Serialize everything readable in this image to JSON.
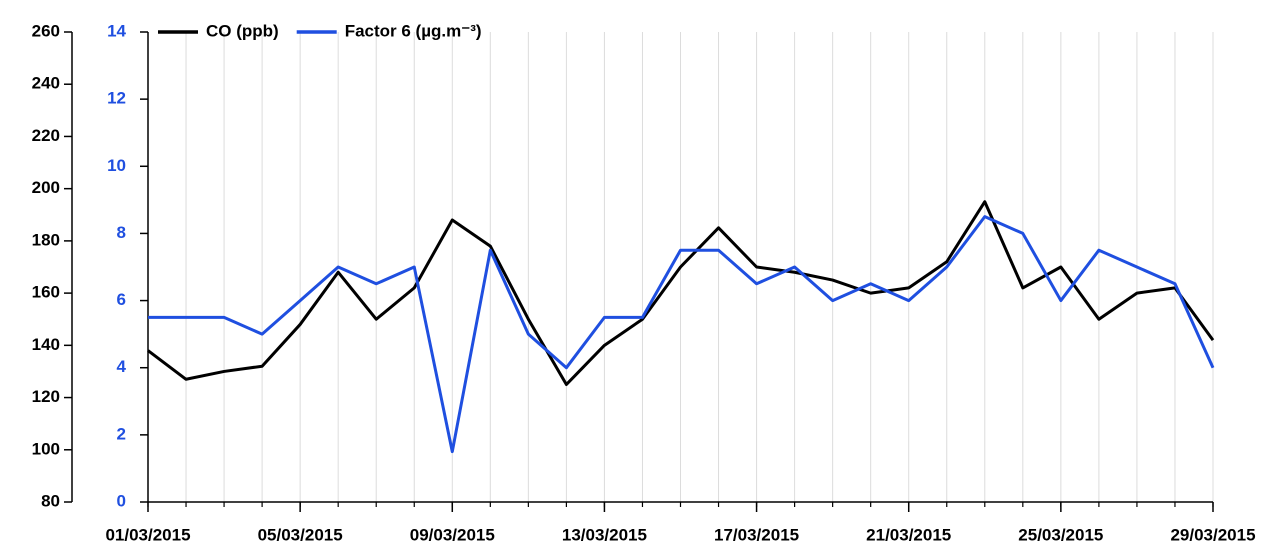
{
  "chart_data": {
    "type": "line",
    "x": [
      "01/03/2015",
      "02/03/2015",
      "03/03/2015",
      "04/03/2015",
      "05/03/2015",
      "06/03/2015",
      "07/03/2015",
      "08/03/2015",
      "09/03/2015",
      "10/03/2015",
      "11/03/2015",
      "12/03/2015",
      "13/03/2015",
      "14/03/2015",
      "15/03/2015",
      "16/03/2015",
      "17/03/2015",
      "18/03/2015",
      "19/03/2015",
      "20/03/2015",
      "21/03/2015",
      "22/03/2015",
      "23/03/2015",
      "24/03/2015",
      "25/03/2015",
      "26/03/2015",
      "27/03/2015",
      "28/03/2015",
      "29/03/2015"
    ],
    "series": [
      {
        "name": "CO (ppb)",
        "color": "#000000",
        "values": [
          138,
          127,
          130,
          132,
          148,
          168,
          150,
          162,
          188,
          178,
          150,
          125,
          140,
          150,
          170,
          185,
          170,
          168,
          165,
          160,
          162,
          172,
          195,
          162,
          170,
          150,
          160,
          162,
          142
        ]
      },
      {
        "name": "Factor 6 (µg.m⁻³)",
        "color": "#1f4fe0",
        "axis": "y2",
        "values": [
          5.5,
          5.5,
          5.5,
          5,
          6,
          7,
          6.5,
          7,
          1.5,
          7.5,
          5,
          4,
          5.5,
          5.5,
          7.5,
          7.5,
          6.5,
          7,
          6,
          6.5,
          6,
          7,
          8.5,
          8,
          6,
          7.5,
          7,
          6.5,
          4
        ]
      }
    ],
    "xlim": [
      "01/03/2015",
      "29/03/2015"
    ],
    "xticks": [
      "01/03/2015",
      "05/03/2015",
      "09/03/2015",
      "13/03/2015",
      "17/03/2015",
      "21/03/2015",
      "25/03/2015",
      "29/03/2015"
    ],
    "ylim": [
      80,
      260
    ],
    "yticks": [
      80,
      100,
      120,
      140,
      160,
      180,
      200,
      220,
      240,
      260
    ],
    "y2lim": [
      0,
      14
    ],
    "y2ticks": [
      0,
      2,
      4,
      6,
      8,
      10,
      12,
      14
    ],
    "grid": true
  }
}
